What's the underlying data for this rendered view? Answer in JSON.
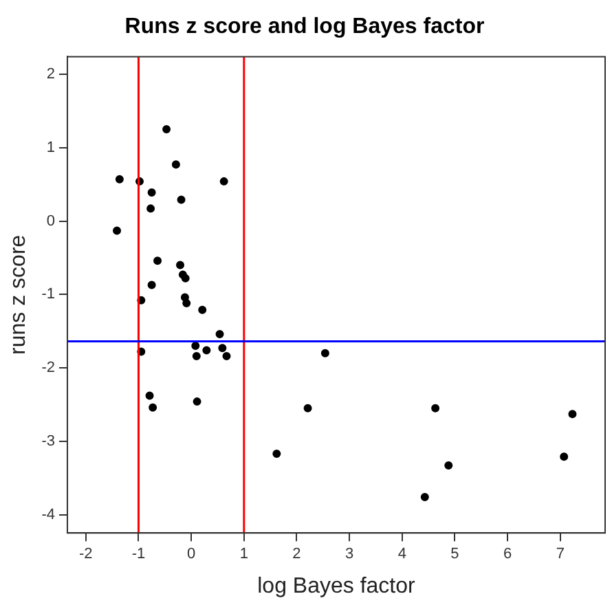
{
  "chart_data": {
    "type": "scatter",
    "title": "Runs z score and log Bayes factor",
    "xlabel": "log Bayes factor",
    "ylabel": "runs z score",
    "x": [
      -0.47,
      -0.29,
      -1.36,
      -0.98,
      0.62,
      -0.75,
      -0.19,
      -0.77,
      -1.41,
      -0.64,
      -0.21,
      -0.16,
      -0.11,
      -0.75,
      -0.95,
      -0.12,
      -0.09,
      0.21,
      0.54,
      0.08,
      0.59,
      -0.95,
      0.29,
      0.1,
      0.67,
      -0.79,
      -0.73,
      0.11,
      2.54,
      2.21,
      1.62,
      4.63,
      4.88,
      4.43,
      7.07,
      7.23
    ],
    "values": [
      1.25,
      0.77,
      0.57,
      0.54,
      0.54,
      0.39,
      0.29,
      0.17,
      -0.13,
      -0.54,
      -0.6,
      -0.73,
      -0.78,
      -0.87,
      -1.08,
      -1.04,
      -1.12,
      -1.21,
      -1.54,
      -1.7,
      -1.73,
      -1.78,
      -1.76,
      -1.84,
      -1.84,
      -2.38,
      -2.54,
      -2.46,
      -1.8,
      -2.55,
      -3.17,
      -2.55,
      -3.33,
      -3.76,
      -3.21,
      -2.63
    ],
    "color": "#000000",
    "marker": "circle",
    "grid": false,
    "legend": false,
    "xlim": [
      -2.35,
      7.85
    ],
    "ylim": [
      -4.25,
      2.24
    ],
    "xticks": [
      -2,
      -1,
      0,
      1,
      2,
      3,
      4,
      5,
      6,
      7
    ],
    "yticks": [
      -4,
      -3,
      -2,
      -1,
      0,
      1,
      2
    ],
    "ref_lines": [
      {
        "axis": "x",
        "value": -1,
        "color": "#ff0000"
      },
      {
        "axis": "x",
        "value": 1,
        "color": "#ff0000"
      },
      {
        "axis": "y",
        "value": -1.64,
        "color": "#0000ff"
      }
    ]
  }
}
